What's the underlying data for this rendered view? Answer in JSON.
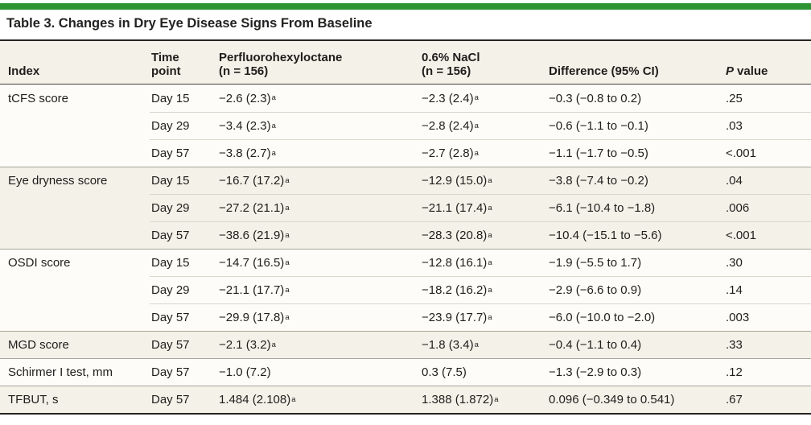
{
  "title": "Table 3. Changes in Dry Eye Disease Signs From Baseline",
  "colors": {
    "accent_green": "#2e9432",
    "row_cream": "#f4f1e9",
    "row_white": "#fdfcf9",
    "text": "#1f1e1b"
  },
  "table": {
    "columns": {
      "index": "Index",
      "time": "Time\npoint",
      "pfh": "Perfluorohexyloctane\n(n = 156)",
      "nacl": "0.6% NaCl\n(n = 156)",
      "diff": "Difference (95% CI)",
      "p_label": "P",
      "p_rest": "value"
    },
    "rows": [
      {
        "index": "tCFS score",
        "time": "Day 15",
        "pfh": "−2.6 (2.3)",
        "pfh_sup": "a",
        "nacl": "−2.3 (2.4)",
        "nacl_sup": "a",
        "diff": "−0.3 (−0.8 to 0.2)",
        "p": ".25"
      },
      {
        "index": "",
        "time": "Day 29",
        "pfh": "−3.4 (2.3)",
        "pfh_sup": "a",
        "nacl": "−2.8 (2.4)",
        "nacl_sup": "a",
        "diff": "−0.6 (−1.1 to −0.1)",
        "p": ".03"
      },
      {
        "index": "",
        "time": "Day 57",
        "pfh": "−3.8 (2.7)",
        "pfh_sup": "a",
        "nacl": "−2.7 (2.8)",
        "nacl_sup": "a",
        "diff": "−1.1 (−1.7 to −0.5)",
        "p": "<.001"
      },
      {
        "index": "Eye dryness score",
        "time": "Day 15",
        "pfh": "−16.7 (17.2)",
        "pfh_sup": "a",
        "nacl": "−12.9 (15.0)",
        "nacl_sup": "a",
        "diff": "−3.8 (−7.4 to −0.2)",
        "p": ".04"
      },
      {
        "index": "",
        "time": "Day 29",
        "pfh": "−27.2 (21.1)",
        "pfh_sup": "a",
        "nacl": "−21.1 (17.4)",
        "nacl_sup": "a",
        "diff": "−6.1 (−10.4 to −1.8)",
        "p": ".006"
      },
      {
        "index": "",
        "time": "Day 57",
        "pfh": "−38.6 (21.9)",
        "pfh_sup": "a",
        "nacl": "−28.3 (20.8)",
        "nacl_sup": "a",
        "diff": "−10.4 (−15.1 to −5.6)",
        "p": "<.001"
      },
      {
        "index": "OSDI score",
        "time": "Day 15",
        "pfh": "−14.7 (16.5)",
        "pfh_sup": "a",
        "nacl": "−12.8 (16.1)",
        "nacl_sup": "a",
        "diff": "−1.9 (−5.5 to 1.7)",
        "p": ".30"
      },
      {
        "index": "",
        "time": "Day 29",
        "pfh": "−21.1 (17.7)",
        "pfh_sup": "a",
        "nacl": "−18.2 (16.2)",
        "nacl_sup": "a",
        "diff": "−2.9 (−6.6 to 0.9)",
        "p": ".14"
      },
      {
        "index": "",
        "time": "Day 57",
        "pfh": "−29.9 (17.8)",
        "pfh_sup": "a",
        "nacl": "−23.9 (17.7)",
        "nacl_sup": "a",
        "diff": "−6.0 (−10.0 to −2.0)",
        "p": ".003"
      },
      {
        "index": "MGD score",
        "time": "Day 57",
        "pfh": "−2.1 (3.2)",
        "pfh_sup": "a",
        "nacl": "−1.8 (3.4)",
        "nacl_sup": "a",
        "diff": "−0.4 (−1.1 to 0.4)",
        "p": ".33"
      },
      {
        "index": "Schirmer I test, mm",
        "time": "Day 57",
        "pfh": "−1.0 (7.2)",
        "pfh_sup": "",
        "nacl": "0.3 (7.5)",
        "nacl_sup": "",
        "diff": "−1.3 (−2.9 to 0.3)",
        "p": ".12"
      },
      {
        "index": "TFBUT, s",
        "time": "Day 57",
        "pfh": "1.484 (2.108)",
        "pfh_sup": "a",
        "nacl": "1.388 (1.872)",
        "nacl_sup": "a",
        "diff": "0.096 (−0.349 to 0.541)",
        "p": ".67"
      }
    ]
  }
}
